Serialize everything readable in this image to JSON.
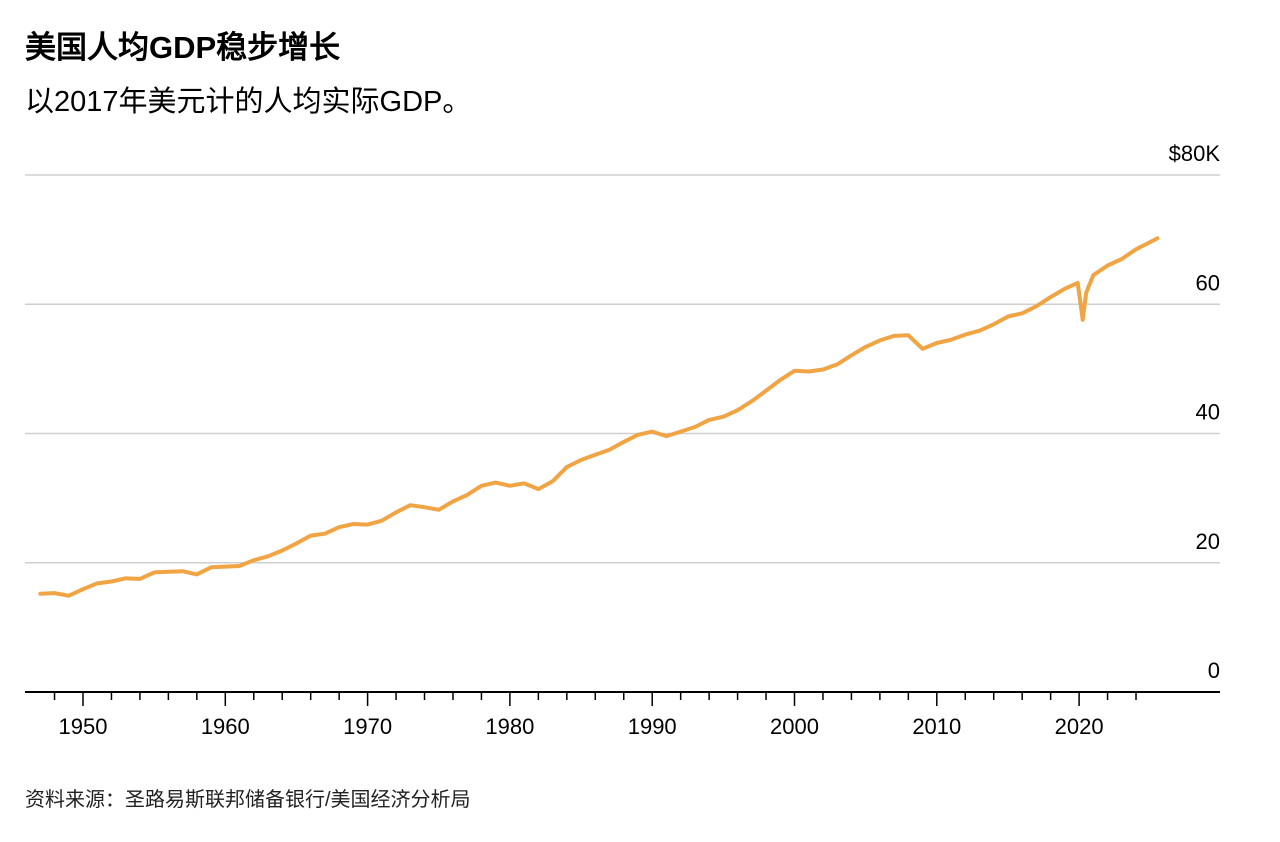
{
  "chart_data": {
    "type": "line",
    "title": "美国人均GDP稳步增长",
    "subtitle": "以2017年美元计的人均实际GDP。",
    "source": "资料来源：圣路易斯联邦储备银行/美国经济分析局",
    "xlim": [
      1947,
      2026
    ],
    "ylim": [
      0,
      80
    ],
    "y_ticks": [
      0,
      20,
      40,
      60,
      80
    ],
    "y_tick_labels": [
      "0",
      "20",
      "40",
      "60",
      "$80K"
    ],
    "x_ticks": [
      1950,
      1960,
      1970,
      1980,
      1990,
      2000,
      2010,
      2020
    ],
    "x_tick_labels": [
      "1950",
      "1960",
      "1970",
      "1980",
      "1990",
      "2000",
      "2010",
      "2020"
    ],
    "grid": true,
    "line_color": "#f0a444",
    "x": [
      1947,
      1948,
      1949,
      1950,
      1951,
      1952,
      1953,
      1954,
      1955,
      1956,
      1957,
      1958,
      1959,
      1960,
      1961,
      1962,
      1963,
      1964,
      1965,
      1966,
      1967,
      1968,
      1969,
      1970,
      1971,
      1972,
      1973,
      1974,
      1975,
      1976,
      1977,
      1978,
      1979,
      1980,
      1981,
      1982,
      1983,
      1984,
      1985,
      1986,
      1987,
      1988,
      1989,
      1990,
      1991,
      1992,
      1993,
      1994,
      1995,
      1996,
      1997,
      1998,
      1999,
      2000,
      2001,
      2002,
      2003,
      2004,
      2005,
      2006,
      2007,
      2008,
      2009,
      2010,
      2011,
      2012,
      2013,
      2014,
      2015,
      2016,
      2017,
      2018,
      2019,
      2019.9,
      2020.25,
      2020.5,
      2021,
      2022,
      2023,
      2024,
      2025.5
    ],
    "y": [
      15.2,
      15.3,
      14.9,
      15.9,
      16.8,
      17.1,
      17.6,
      17.5,
      18.5,
      18.6,
      18.7,
      18.2,
      19.3,
      19.4,
      19.5,
      20.4,
      21.0,
      21.9,
      23.0,
      24.2,
      24.5,
      25.5,
      26.0,
      25.9,
      26.5,
      27.8,
      28.9,
      28.6,
      28.2,
      29.5,
      30.5,
      31.9,
      32.4,
      31.9,
      32.3,
      31.4,
      32.6,
      34.8,
      35.9,
      36.7,
      37.5,
      38.7,
      39.8,
      40.3,
      39.6,
      40.3,
      41.0,
      42.1,
      42.6,
      43.6,
      45.0,
      46.6,
      48.3,
      49.7,
      49.6,
      49.9,
      50.7,
      52.1,
      53.4,
      54.4,
      55.1,
      55.2,
      53.1,
      54.0,
      54.5,
      55.3,
      55.9,
      56.9,
      58.1,
      58.6,
      59.7,
      61.1,
      62.4,
      63.3,
      57.6,
      61.8,
      64.5,
      66.0,
      67.0,
      68.5,
      70.2
    ]
  }
}
